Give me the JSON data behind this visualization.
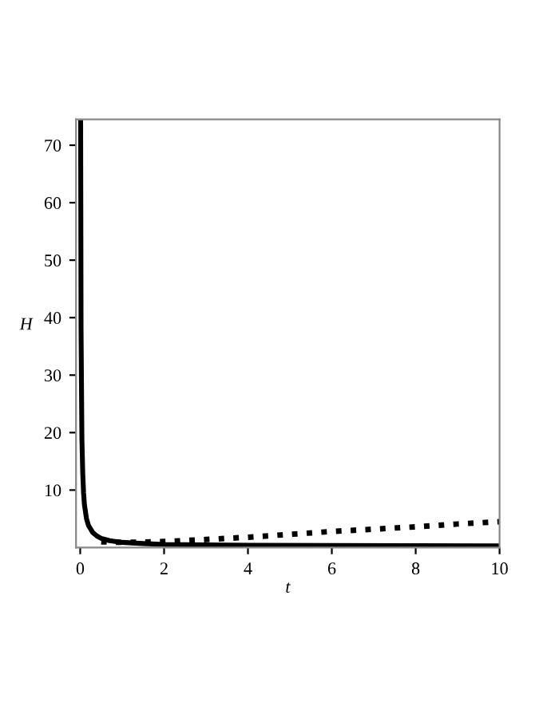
{
  "chart_data": {
    "type": "line",
    "xlabel": "t",
    "ylabel": "H",
    "xlim": [
      -0.1,
      10
    ],
    "ylim": [
      0,
      74.5
    ],
    "xticks": [
      0,
      2,
      4,
      6,
      8,
      10
    ],
    "yticks": [
      10,
      20,
      30,
      40,
      50,
      60,
      70
    ],
    "grid": false,
    "legend": false,
    "series": [
      {
        "color": "#000000",
        "line_style": "solid",
        "x": [
          0.01,
          0.02,
          0.04,
          0.06,
          0.08,
          0.1,
          0.15,
          0.2,
          0.3,
          0.4,
          0.5,
          0.7,
          1,
          1.5,
          2,
          3,
          4,
          6,
          8,
          10
        ],
        "values": [
          74,
          38,
          19,
          13,
          9.5,
          7.5,
          5,
          3.8,
          2.6,
          2,
          1.6,
          1.2,
          0.9,
          0.7,
          0.55,
          0.45,
          0.4,
          0.35,
          0.32,
          0.3
        ]
      },
      {
        "color": "#000000",
        "line_style": "dotted",
        "x": [
          0.5,
          1,
          1.5,
          2,
          3,
          4,
          5,
          6,
          7,
          8,
          9,
          10
        ],
        "values": [
          1.0,
          0.9,
          0.95,
          1.05,
          1.4,
          1.8,
          2.3,
          2.8,
          3.2,
          3.6,
          4.1,
          4.5
        ]
      }
    ]
  }
}
